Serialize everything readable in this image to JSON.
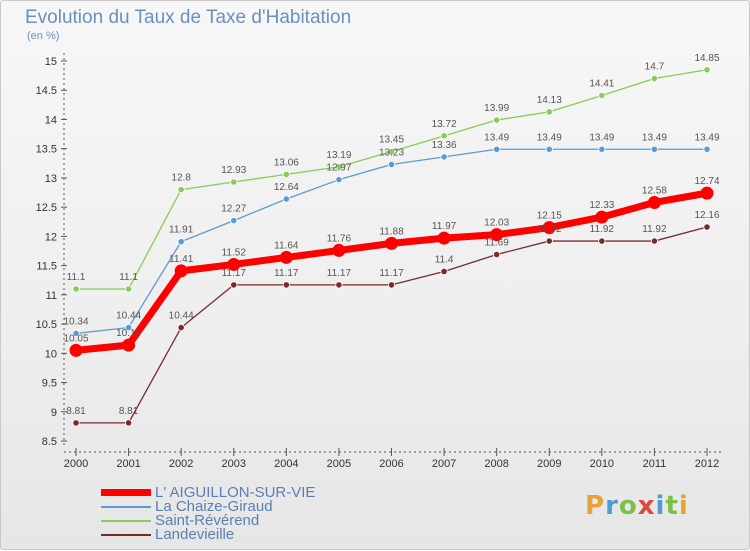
{
  "title": "Evolution du Taux de Taxe d'Habitation",
  "unit": "(en %)",
  "logo": {
    "letters": [
      "P",
      "r",
      "o",
      "x",
      "i",
      "t",
      "i"
    ],
    "colors": [
      "#e8a23a",
      "#4f9bd6",
      "#7cc04a",
      "#e0483a",
      "#4f9bd6",
      "#7cc04a",
      "#e8a23a"
    ]
  },
  "chart_data": {
    "type": "line",
    "title": "Evolution du Taux de Taxe d'Habitation",
    "ylabel": "(en %)",
    "xlabel": "",
    "x": [
      "2000",
      "2001",
      "2002",
      "2003",
      "2004",
      "2005",
      "2006",
      "2007",
      "2008",
      "2009",
      "2010",
      "2011",
      "2012"
    ],
    "ylim": [
      8.5,
      15
    ],
    "yticks": [
      "8.5",
      "9",
      "9.5",
      "10",
      "10.5",
      "11",
      "11.5",
      "12",
      "12.5",
      "13",
      "13.5",
      "14",
      "14.5",
      "15"
    ],
    "grid": false,
    "legend_position": "bottom-left",
    "series": [
      {
        "name": "L' AIGUILLON-SUR-VIE",
        "color": "#ff0000",
        "main": true,
        "values": [
          10.05,
          10.14,
          11.41,
          11.52,
          11.64,
          11.76,
          11.88,
          11.97,
          12.03,
          12.15,
          12.33,
          12.58,
          12.74
        ],
        "labels": [
          "10.05",
          "10.14",
          "11.41",
          "11.52",
          "11.64",
          "11.76",
          "11.88",
          "11.97",
          "12.03",
          "12.15",
          "12.33",
          "12.58",
          "12.74"
        ]
      },
      {
        "name": "La Chaize-Giraud",
        "color": "#5b9bd5",
        "values": [
          10.34,
          10.44,
          11.91,
          12.27,
          12.64,
          12.97,
          13.23,
          13.36,
          13.49,
          13.49,
          13.49,
          13.49,
          13.49
        ],
        "labels": [
          "10.34",
          "10.44",
          "11.91",
          "12.27",
          "12.64",
          "12.97",
          "13.23",
          "13.36",
          "13.49",
          "13.49",
          "13.49",
          "13.49",
          "13.49"
        ]
      },
      {
        "name": "Saint-Révérend",
        "color": "#88cc55",
        "values": [
          11.1,
          11.1,
          12.8,
          12.93,
          13.06,
          13.19,
          13.45,
          13.72,
          13.99,
          14.13,
          14.41,
          14.7,
          14.85
        ],
        "labels": [
          "11.1",
          "11.1",
          "12.8",
          "12.93",
          "13.06",
          "13.19",
          "13.45",
          "13.72",
          "13.99",
          "14.13",
          "14.41",
          "14.7",
          "14.85"
        ]
      },
      {
        "name": "Landevieille",
        "color": "#7a2a2a",
        "values": [
          8.81,
          8.81,
          10.44,
          11.17,
          11.17,
          11.17,
          11.17,
          11.4,
          11.69,
          11.92,
          11.92,
          11.92,
          12.16
        ],
        "labels": [
          "8.81",
          "8.81",
          "10.44",
          "11.17",
          "11.17",
          "11.17",
          "11.17",
          "11.4",
          "11.69",
          "11.92",
          "11.92",
          "11.92",
          "12.16"
        ]
      }
    ]
  }
}
